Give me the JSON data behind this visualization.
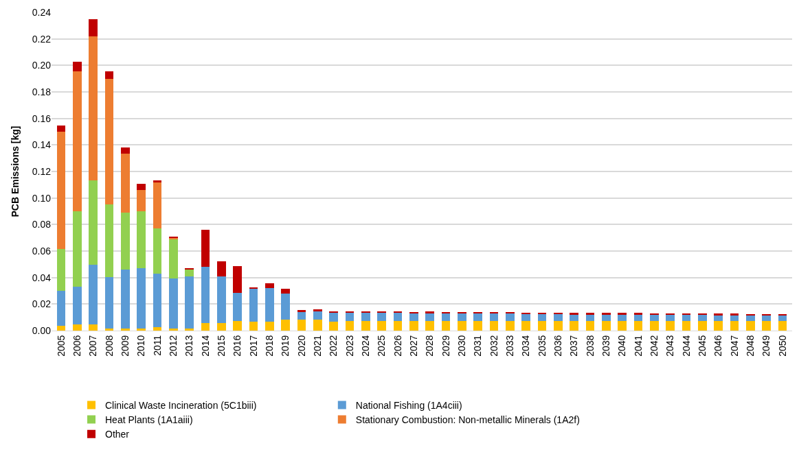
{
  "chart_data": {
    "type": "bar",
    "stacked": true,
    "ylabel": "PCB Emissions [kg]",
    "categories": [
      "2005",
      "2006",
      "2007",
      "2008",
      "2009",
      "2010",
      "2011",
      "2012",
      "2013",
      "2014",
      "2015",
      "2016",
      "2017",
      "2018",
      "2019",
      "2020",
      "2021",
      "2022",
      "2023",
      "2024",
      "2025",
      "2026",
      "2027",
      "2028",
      "2029",
      "2030",
      "2031",
      "2032",
      "2033",
      "2034",
      "2035",
      "2036",
      "2037",
      "2038",
      "2039",
      "2040",
      "2041",
      "2042",
      "2043",
      "2044",
      "2045",
      "2046",
      "2047",
      "2048",
      "2049",
      "2050"
    ],
    "series": [
      {
        "name": "Clinical Waste Incineration (5C1biii)",
        "color": "#ffc000",
        "values": [
          0.0036,
          0.0044,
          0.0044,
          0.0018,
          0.0015,
          0.0016,
          0.0024,
          0.0013,
          0.0016,
          0.0057,
          0.0057,
          0.0071,
          0.0068,
          0.0065,
          0.0081,
          0.0084,
          0.0083,
          0.0068,
          0.0071,
          0.0071,
          0.0071,
          0.0071,
          0.0071,
          0.0071,
          0.0071,
          0.0071,
          0.0071,
          0.0071,
          0.0071,
          0.0071,
          0.0071,
          0.0071,
          0.0071,
          0.0071,
          0.0071,
          0.0071,
          0.0071,
          0.0071,
          0.0071,
          0.0071,
          0.0071,
          0.0071,
          0.0071,
          0.0071,
          0.0071,
          0.0071
        ]
      },
      {
        "name": "National Fishing (1A4ciii)",
        "color": "#5b9bd5",
        "values": [
          0.0262,
          0.0285,
          0.0453,
          0.0387,
          0.0447,
          0.0457,
          0.0407,
          0.0382,
          0.0394,
          0.0424,
          0.0351,
          0.0215,
          0.0251,
          0.0254,
          0.0199,
          0.0058,
          0.0066,
          0.007,
          0.0063,
          0.0063,
          0.0062,
          0.0061,
          0.006,
          0.006,
          0.0059,
          0.0059,
          0.0058,
          0.0057,
          0.0056,
          0.0055,
          0.0055,
          0.0054,
          0.0053,
          0.0053,
          0.0052,
          0.0052,
          0.0051,
          0.005,
          0.005,
          0.0049,
          0.0048,
          0.0047,
          0.0046,
          0.0045,
          0.0044,
          0.0043
        ]
      },
      {
        "name": "Heat Plants (1A1aiii)",
        "color": "#92d050",
        "values": [
          0.0316,
          0.0572,
          0.0637,
          0.0549,
          0.0427,
          0.0429,
          0.0339,
          0.0298,
          0.0048,
          0,
          0,
          0,
          0,
          0,
          0,
          0,
          0,
          0,
          0,
          0,
          0,
          0,
          0,
          0,
          0,
          0,
          0,
          0,
          0,
          0,
          0,
          0,
          0,
          0,
          0,
          0,
          0,
          0,
          0,
          0,
          0,
          0,
          0,
          0,
          0,
          0
        ]
      },
      {
        "name": "Stationary Combustion: Non-metallic Minerals (1A2f)",
        "color": "#ed7d31",
        "values": [
          0.0886,
          0.1053,
          0.1085,
          0.0945,
          0.0446,
          0.0159,
          0.0346,
          0.0007,
          0,
          0,
          0,
          0,
          0,
          0,
          0,
          0,
          0,
          0,
          0,
          0,
          0,
          0,
          0,
          0,
          0,
          0,
          0,
          0,
          0,
          0,
          0,
          0,
          0,
          0,
          0,
          0,
          0,
          0,
          0,
          0,
          0,
          0,
          0,
          0,
          0,
          0
        ]
      },
      {
        "name": "Other",
        "color": "#c00000",
        "values": [
          0.0044,
          0.0076,
          0.0127,
          0.0056,
          0.0045,
          0.0044,
          0.0016,
          0.0011,
          0.0013,
          0.0277,
          0.0115,
          0.0198,
          0.0006,
          0.0037,
          0.0036,
          0.0012,
          0.001,
          0.0009,
          0.0012,
          0.0011,
          0.0011,
          0.0011,
          0.0011,
          0.0012,
          0.0011,
          0.0011,
          0.0011,
          0.0011,
          0.0011,
          0.0011,
          0.0011,
          0.001,
          0.001,
          0.001,
          0.001,
          0.001,
          0.001,
          0.001,
          0.001,
          0.001,
          0.001,
          0.001,
          0.001,
          0.001,
          0.001,
          0.001
        ]
      }
    ],
    "ylim": [
      0,
      0.24
    ],
    "yticks": [
      {
        "value": 0,
        "label": "0.00"
      },
      {
        "value": 0.02,
        "label": "0.02"
      },
      {
        "value": 0.04,
        "label": "0.04"
      },
      {
        "value": 0.06,
        "label": "0.06"
      },
      {
        "value": 0.08,
        "label": "0.08"
      },
      {
        "value": 0.1,
        "label": "0.10"
      },
      {
        "value": 0.12,
        "label": "0.12"
      },
      {
        "value": 0.14,
        "label": "0.14"
      },
      {
        "value": 0.16,
        "label": "0.16"
      },
      {
        "value": 0.18,
        "label": "0.18"
      },
      {
        "value": 0.2,
        "label": "0.20"
      },
      {
        "value": 0.22,
        "label": "0.22"
      },
      {
        "value": 0.24,
        "label": "0.24"
      }
    ],
    "grid": "y",
    "legend": "bottom"
  }
}
